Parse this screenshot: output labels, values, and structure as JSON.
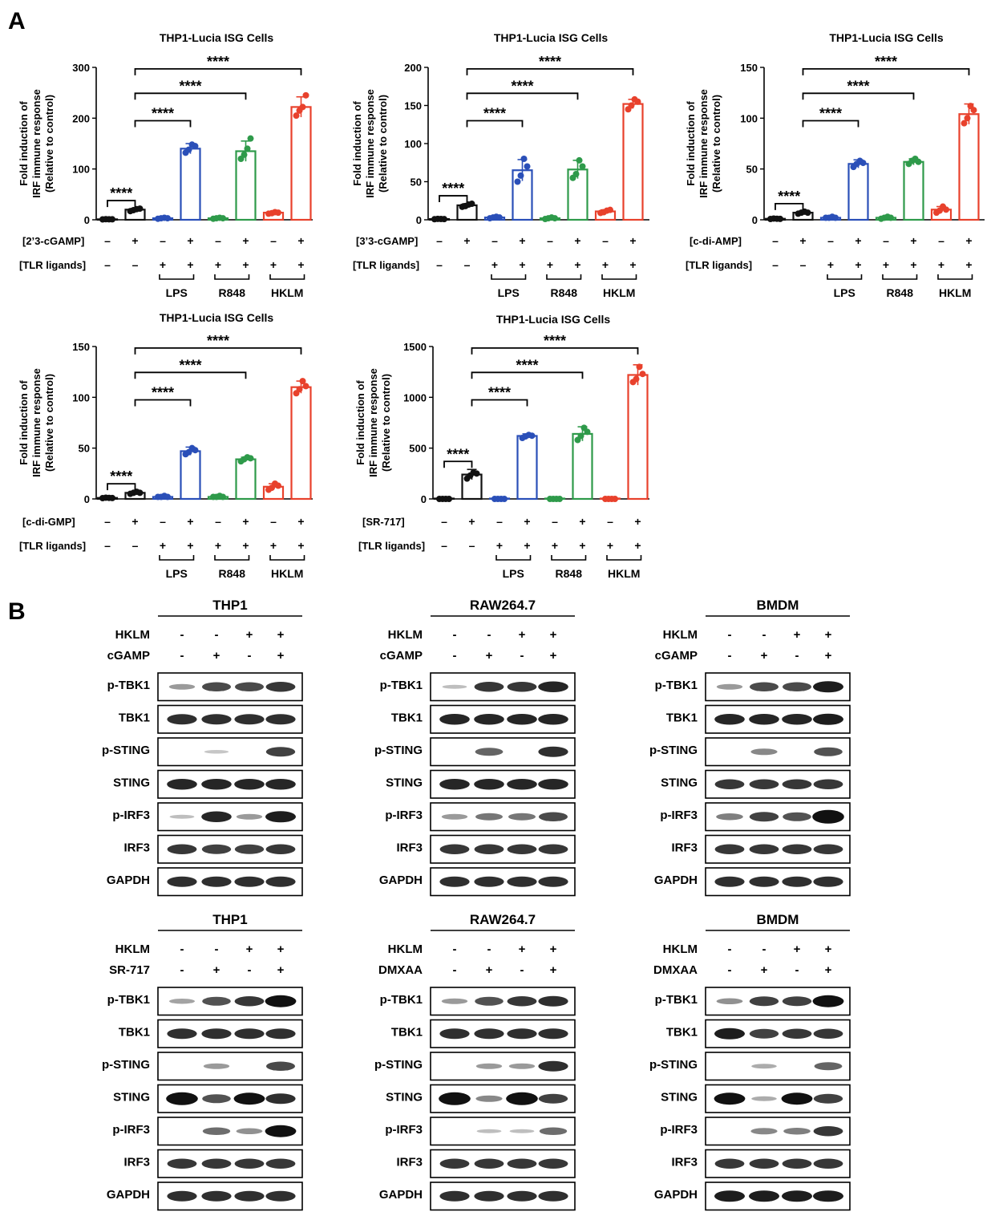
{
  "panel_labels": {
    "a": "A",
    "b": "B"
  },
  "common": {
    "ylabel_line1": "Fold induction of",
    "ylabel_line2": "IRF immune response",
    "ylabel_line3": "(Relative to control)",
    "tlr_row_label": "[TLR ligands]",
    "group_labels": [
      "LPS",
      "R848",
      "HKLM"
    ],
    "sig": "****",
    "plus": "+",
    "minus": "–"
  },
  "colors": {
    "black": "#111111",
    "blue": "#2a4fb8",
    "green": "#2e9a4a",
    "red": "#e8412c"
  },
  "chart_data": [
    {
      "type": "bar",
      "title": "THP1-Lucia ISG Cells",
      "agonist": "[2’3-cGAMP]",
      "ylim": [
        0,
        300
      ],
      "yticks": [
        "0",
        "100",
        "200",
        "300"
      ],
      "values": [
        1,
        20,
        3,
        140,
        3,
        135,
        14,
        222
      ],
      "errors": [
        0.5,
        2,
        1,
        10,
        1,
        20,
        2,
        20
      ],
      "points": [
        [
          0.8,
          1.2,
          1,
          0.9
        ],
        [
          17,
          19,
          21,
          22
        ],
        [
          2,
          3,
          4,
          3
        ],
        [
          132,
          138,
          148,
          145
        ],
        [
          2,
          3,
          4,
          3
        ],
        [
          120,
          128,
          140,
          160
        ],
        [
          12,
          13,
          15,
          14
        ],
        [
          205,
          215,
          222,
          245
        ]
      ]
    },
    {
      "type": "bar",
      "title": "THP1-Lucia ISG Cells",
      "agonist": "[3’3-cGAMP]",
      "ylim": [
        0,
        200
      ],
      "yticks": [
        "0",
        "50",
        "100",
        "150",
        "200"
      ],
      "values": [
        1,
        19,
        3,
        65,
        2,
        66,
        11,
        152
      ],
      "errors": [
        0.5,
        2,
        1,
        14,
        1,
        12,
        2,
        6
      ],
      "points": [
        [
          0.8,
          1.2,
          1,
          0.9
        ],
        [
          17,
          18,
          20,
          21
        ],
        [
          2,
          3,
          4,
          3
        ],
        [
          50,
          58,
          80,
          70
        ],
        [
          1,
          2,
          3,
          2
        ],
        [
          55,
          60,
          78,
          70
        ],
        [
          9,
          10,
          12,
          13
        ],
        [
          145,
          150,
          158,
          155
        ]
      ]
    },
    {
      "type": "bar",
      "title": "THP1-Lucia ISG Cells",
      "agonist": "[c-di-AMP]",
      "ylim": [
        0,
        150
      ],
      "yticks": [
        "0",
        "50",
        "100",
        "150"
      ],
      "values": [
        1,
        7,
        2,
        55,
        2,
        57,
        10,
        104
      ],
      "errors": [
        0.5,
        1,
        0.5,
        4,
        0.5,
        3,
        3,
        10
      ],
      "points": [
        [
          0.8,
          1.2,
          1,
          0.9
        ],
        [
          6,
          7,
          8,
          7
        ],
        [
          2,
          2,
          3,
          2
        ],
        [
          52,
          55,
          58,
          56
        ],
        [
          1,
          2,
          3,
          2
        ],
        [
          55,
          58,
          60,
          57
        ],
        [
          7,
          9,
          13,
          10
        ],
        [
          95,
          100,
          112,
          108
        ]
      ]
    },
    {
      "type": "bar",
      "title": "THP1-Lucia ISG Cells",
      "agonist": "[c-di-GMP]",
      "ylim": [
        0,
        150
      ],
      "yticks": [
        "0",
        "50",
        "100",
        "150"
      ],
      "values": [
        1,
        6,
        2,
        47,
        2,
        39,
        12,
        110
      ],
      "errors": [
        0.5,
        1,
        0.5,
        4,
        0.5,
        2,
        3,
        6
      ],
      "points": [
        [
          0.8,
          1.2,
          1,
          0.9
        ],
        [
          5,
          6,
          7,
          6
        ],
        [
          2,
          2,
          3,
          2
        ],
        [
          44,
          46,
          50,
          48
        ],
        [
          2,
          2,
          3,
          2
        ],
        [
          37,
          39,
          41,
          40
        ],
        [
          9,
          11,
          15,
          13
        ],
        [
          104,
          108,
          116,
          111
        ]
      ]
    },
    {
      "type": "bar",
      "title": "THP1-Lucia ISG Cells",
      "agonist": "[SR-717]",
      "ylim": [
        0,
        1500
      ],
      "yticks": [
        "0",
        "500",
        "1000",
        "1500"
      ],
      "values": [
        0,
        240,
        0,
        620,
        0,
        640,
        0,
        1220
      ],
      "errors": [
        5,
        50,
        5,
        20,
        5,
        70,
        5,
        100
      ],
      "points": [
        [
          0,
          0,
          0,
          0
        ],
        [
          200,
          230,
          260,
          250
        ],
        [
          0,
          0,
          0,
          0
        ],
        [
          600,
          615,
          630,
          622
        ],
        [
          0,
          0,
          0,
          0
        ],
        [
          580,
          620,
          700,
          660
        ],
        [
          0,
          0,
          0,
          0
        ],
        [
          1150,
          1180,
          1300,
          1230
        ]
      ]
    }
  ],
  "ticks": {
    "agonist": [
      "–",
      "+",
      "–",
      "+",
      "–",
      "+",
      "–",
      "+"
    ],
    "tlr": [
      "–",
      "–",
      "+",
      "+",
      "+",
      "+",
      "+",
      "+"
    ]
  },
  "western_blots": [
    {
      "title": "THP1",
      "row2": "cGAMP"
    },
    {
      "title": "RAW264.7",
      "row2": "cGAMP"
    },
    {
      "title": "BMDM",
      "row2": "cGAMP"
    },
    {
      "title": "THP1",
      "row2": "SR-717"
    },
    {
      "title": "RAW264.7",
      "row2": "DMXAA"
    },
    {
      "title": "BMDM",
      "row2": "DMXAA"
    }
  ],
  "wb_common": {
    "row1": "HKLM",
    "row1_signs": [
      "-",
      "-",
      "+",
      "+"
    ],
    "row2_signs": [
      "-",
      "+",
      "-",
      "+"
    ],
    "proteins": [
      "p-TBK1",
      "TBK1",
      "p-STING",
      "STING",
      "p-IRF3",
      "IRF3",
      "GAPDH"
    ]
  },
  "bands": [
    [
      [
        0.3,
        0.75,
        0.75,
        0.85
      ],
      [
        0.9,
        0.9,
        0.9,
        0.9
      ],
      [
        0,
        0.05,
        0,
        0.8
      ],
      [
        0.95,
        0.95,
        0.95,
        0.95
      ],
      [
        0.1,
        0.95,
        0.3,
        1
      ],
      [
        0.85,
        0.8,
        0.8,
        0.85
      ],
      [
        0.9,
        0.9,
        0.9,
        0.9
      ]
    ],
    [
      [
        0.1,
        0.85,
        0.85,
        0.95
      ],
      [
        0.95,
        0.95,
        0.95,
        0.95
      ],
      [
        0,
        0.6,
        0,
        0.9
      ],
      [
        0.95,
        0.95,
        0.95,
        0.95
      ],
      [
        0.3,
        0.5,
        0.5,
        0.75
      ],
      [
        0.85,
        0.85,
        0.85,
        0.85
      ],
      [
        0.9,
        0.9,
        0.9,
        0.9
      ]
    ],
    [
      [
        0.3,
        0.75,
        0.75,
        1
      ],
      [
        0.95,
        0.95,
        0.95,
        1
      ],
      [
        0,
        0.4,
        0,
        0.7
      ],
      [
        0.85,
        0.85,
        0.85,
        0.85
      ],
      [
        0.45,
        0.8,
        0.7,
        1.3
      ],
      [
        0.85,
        0.85,
        0.85,
        0.85
      ],
      [
        0.9,
        0.9,
        0.9,
        0.9
      ]
    ],
    [
      [
        0.25,
        0.7,
        0.85,
        1.1
      ],
      [
        0.9,
        0.9,
        0.9,
        0.9
      ],
      [
        0,
        0.3,
        0,
        0.75
      ],
      [
        1.2,
        0.7,
        1.1,
        0.9
      ],
      [
        0,
        0.55,
        0.35,
        1.1
      ],
      [
        0.85,
        0.85,
        0.85,
        0.85
      ],
      [
        0.9,
        0.9,
        0.9,
        0.9
      ]
    ],
    [
      [
        0.3,
        0.7,
        0.85,
        0.9
      ],
      [
        0.9,
        0.9,
        0.9,
        0.9
      ],
      [
        0,
        0.3,
        0.3,
        0.9
      ],
      [
        1.2,
        0.4,
        1.2,
        0.8
      ],
      [
        0,
        0.1,
        0.1,
        0.55
      ],
      [
        0.85,
        0.85,
        0.85,
        0.85
      ],
      [
        0.9,
        0.9,
        0.9,
        0.9
      ]
    ],
    [
      [
        0.35,
        0.8,
        0.8,
        1.1
      ],
      [
        1,
        0.8,
        0.85,
        0.85
      ],
      [
        0,
        0.2,
        0,
        0.6
      ],
      [
        1.1,
        0.2,
        1.1,
        0.8
      ],
      [
        0,
        0.4,
        0.45,
        0.85
      ],
      [
        0.85,
        0.85,
        0.85,
        0.85
      ],
      [
        1,
        1,
        1,
        1
      ]
    ]
  ]
}
